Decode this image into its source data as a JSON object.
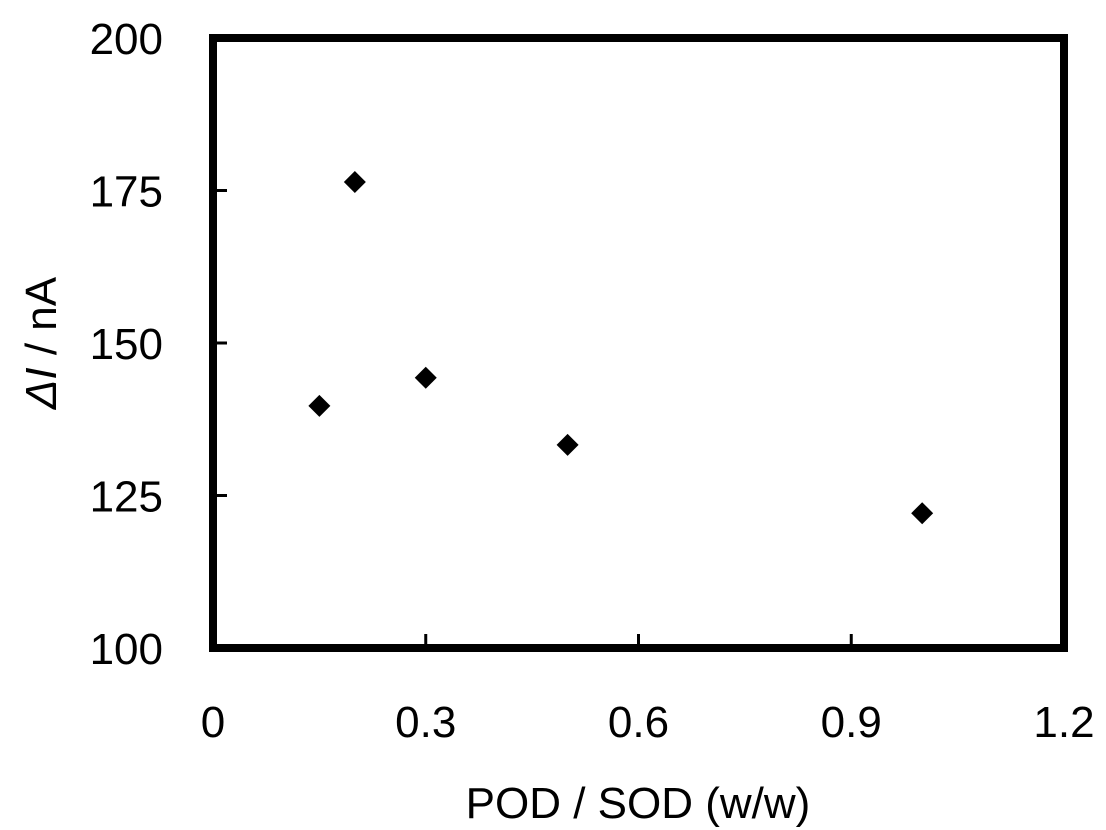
{
  "chart_data": {
    "type": "scatter",
    "title": "",
    "xlabel": "POD / SOD (w/w)",
    "ylabel": {
      "symbol": "ΔI",
      "rest": " / nA"
    },
    "xlim": [
      0,
      1.2
    ],
    "ylim": [
      100,
      200
    ],
    "xticks": [
      "0",
      "0.3",
      "0.6",
      "0.9",
      "1.2"
    ],
    "yticks": [
      "100",
      "125",
      "150",
      "175",
      "200"
    ],
    "grid": false,
    "legend": "none",
    "marker": "diamond",
    "marker_color": "#000000",
    "frame_color": "#000000",
    "series": [
      {
        "x": [
          0.15,
          0.2,
          0.3,
          0.5,
          1.0
        ],
        "y": [
          139.7,
          176.4,
          144.3,
          133.3,
          122.1
        ]
      }
    ]
  }
}
